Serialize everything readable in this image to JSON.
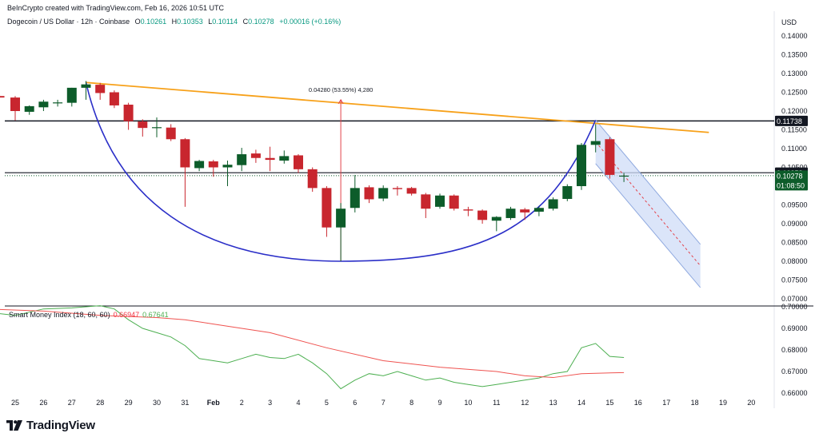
{
  "header": {
    "created": "BeInCrypto created with TradingView.com, Feb 16, 2026 10:51 UTC",
    "symbol": "Dogecoin / US Dollar · 12h · Coinbase",
    "ohlc": {
      "o_label": "O",
      "o": "0.10261",
      "h_label": "H",
      "h": "0.10353",
      "l_label": "L",
      "l": "0.10114",
      "c_label": "C",
      "c": "0.10278",
      "change": "+0.00016 (+0.16%)"
    }
  },
  "currency": "USD",
  "indicator": {
    "label": "Smart Money Index (18, 60, 60)",
    "value1": "0.66947",
    "value2": "0.67641"
  },
  "logo": "TradingView",
  "colors": {
    "up": "#0d5c2a",
    "down": "#c8262e",
    "trend": "#f7a11a",
    "cup": "#2b2fc8",
    "smi_fast": "#4caf50",
    "smi_slow": "#ef5350"
  },
  "chart_data": [
    {
      "type": "candlestick",
      "price_scale": {
        "min": 0.07,
        "max": 0.14,
        "ticks": [
          "0.14000",
          "0.13500",
          "0.13000",
          "0.12500",
          "0.12000",
          "0.11500",
          "0.11000",
          "0.10500",
          "0.10000",
          "0.09500",
          "0.09000",
          "0.08500",
          "0.08000",
          "0.07500",
          "0.07000"
        ]
      },
      "x_axis": {
        "labels": [
          "25",
          "26",
          "27",
          "28",
          "29",
          "30",
          "31",
          "Feb",
          "2",
          "3",
          "4",
          "5",
          "6",
          "7",
          "8",
          "9",
          "10",
          "11",
          "12",
          "13",
          "14",
          "15",
          "16",
          "17",
          "18",
          "19",
          "20"
        ]
      },
      "candles": [
        {
          "x": 24.45,
          "o": 0.124,
          "h": 0.1245,
          "l": 0.1232,
          "c": 0.1236
        },
        {
          "x": 25.0,
          "o": 0.1236,
          "h": 0.124,
          "l": 0.1175,
          "c": 0.12
        },
        {
          "x": 25.5,
          "o": 0.1198,
          "h": 0.1215,
          "l": 0.119,
          "c": 0.1213
        },
        {
          "x": 26.0,
          "o": 0.121,
          "h": 0.123,
          "l": 0.12,
          "c": 0.1225
        },
        {
          "x": 26.5,
          "o": 0.1223,
          "h": 0.123,
          "l": 0.1212,
          "c": 0.1223
        },
        {
          "x": 27.0,
          "o": 0.1222,
          "h": 0.1262,
          "l": 0.1212,
          "c": 0.1262
        },
        {
          "x": 27.5,
          "o": 0.1262,
          "h": 0.128,
          "l": 0.123,
          "c": 0.1271
        },
        {
          "x": 28.0,
          "o": 0.127,
          "h": 0.1275,
          "l": 0.123,
          "c": 0.1248
        },
        {
          "x": 28.5,
          "o": 0.125,
          "h": 0.1255,
          "l": 0.1208,
          "c": 0.1215
        },
        {
          "x": 29.0,
          "o": 0.1217,
          "h": 0.1222,
          "l": 0.115,
          "c": 0.1173
        },
        {
          "x": 29.5,
          "o": 0.1172,
          "h": 0.1178,
          "l": 0.1132,
          "c": 0.1155
        },
        {
          "x": 30.0,
          "o": 0.1155,
          "h": 0.1183,
          "l": 0.113,
          "c": 0.1157
        },
        {
          "x": 30.5,
          "o": 0.1156,
          "h": 0.1165,
          "l": 0.112,
          "c": 0.1125
        },
        {
          "x": 31.0,
          "o": 0.1125,
          "h": 0.1128,
          "l": 0.0945,
          "c": 0.105
        },
        {
          "x": 31.5,
          "o": 0.1048,
          "h": 0.107,
          "l": 0.104,
          "c": 0.1067
        },
        {
          "x": 32.0,
          "o": 0.1066,
          "h": 0.107,
          "l": 0.1025,
          "c": 0.105
        },
        {
          "x": 32.5,
          "o": 0.105,
          "h": 0.1068,
          "l": 0.1,
          "c": 0.1057
        },
        {
          "x": 33.0,
          "o": 0.1056,
          "h": 0.1102,
          "l": 0.104,
          "c": 0.1085
        },
        {
          "x": 33.5,
          "o": 0.1087,
          "h": 0.1097,
          "l": 0.1062,
          "c": 0.1075
        },
        {
          "x": 34.0,
          "o": 0.1075,
          "h": 0.1105,
          "l": 0.104,
          "c": 0.107
        },
        {
          "x": 34.5,
          "o": 0.1068,
          "h": 0.1095,
          "l": 0.106,
          "c": 0.108
        },
        {
          "x": 35.0,
          "o": 0.1082,
          "h": 0.1085,
          "l": 0.1035,
          "c": 0.1045
        },
        {
          "x": 35.5,
          "o": 0.1045,
          "h": 0.105,
          "l": 0.0985,
          "c": 0.0995
        },
        {
          "x": 36.0,
          "o": 0.0995,
          "h": 0.1,
          "l": 0.0865,
          "c": 0.089
        },
        {
          "x": 36.5,
          "o": 0.089,
          "h": 0.0955,
          "l": 0.08,
          "c": 0.094
        },
        {
          "x": 37.0,
          "o": 0.0942,
          "h": 0.103,
          "l": 0.093,
          "c": 0.0995
        },
        {
          "x": 37.5,
          "o": 0.0997,
          "h": 0.1002,
          "l": 0.0955,
          "c": 0.0965
        },
        {
          "x": 38.0,
          "o": 0.0967,
          "h": 0.1002,
          "l": 0.096,
          "c": 0.0995
        },
        {
          "x": 38.5,
          "o": 0.0995,
          "h": 0.1,
          "l": 0.0975,
          "c": 0.0992
        },
        {
          "x": 39.0,
          "o": 0.0995,
          "h": 0.0998,
          "l": 0.0975,
          "c": 0.098
        },
        {
          "x": 39.5,
          "o": 0.0978,
          "h": 0.0982,
          "l": 0.0915,
          "c": 0.094
        },
        {
          "x": 40.0,
          "o": 0.0945,
          "h": 0.098,
          "l": 0.094,
          "c": 0.0975
        },
        {
          "x": 40.5,
          "o": 0.0975,
          "h": 0.0978,
          "l": 0.0935,
          "c": 0.094
        },
        {
          "x": 41.0,
          "o": 0.0938,
          "h": 0.0945,
          "l": 0.092,
          "c": 0.0935
        },
        {
          "x": 41.5,
          "o": 0.0935,
          "h": 0.0938,
          "l": 0.09,
          "c": 0.091
        },
        {
          "x": 42.0,
          "o": 0.0908,
          "h": 0.092,
          "l": 0.088,
          "c": 0.0918
        },
        {
          "x": 42.5,
          "o": 0.0915,
          "h": 0.0945,
          "l": 0.091,
          "c": 0.094
        },
        {
          "x": 43.0,
          "o": 0.0938,
          "h": 0.0942,
          "l": 0.091,
          "c": 0.093
        },
        {
          "x": 43.5,
          "o": 0.0932,
          "h": 0.0946,
          "l": 0.092,
          "c": 0.0942
        },
        {
          "x": 44.0,
          "o": 0.094,
          "h": 0.097,
          "l": 0.0935,
          "c": 0.0965
        },
        {
          "x": 44.5,
          "o": 0.0966,
          "h": 0.1005,
          "l": 0.096,
          "c": 0.1
        },
        {
          "x": 45.0,
          "o": 0.1,
          "h": 0.1115,
          "l": 0.099,
          "c": 0.111
        },
        {
          "x": 45.5,
          "o": 0.111,
          "h": 0.1165,
          "l": 0.109,
          "c": 0.112
        },
        {
          "x": 46.0,
          "o": 0.1125,
          "h": 0.113,
          "l": 0.102,
          "c": 0.103
        },
        {
          "x": 46.5,
          "o": 0.1026,
          "h": 0.1035,
          "l": 0.1011,
          "c": 0.1028
        }
      ],
      "price_levels": [
        {
          "value": 0.11738,
          "label": "0.11738"
        },
        {
          "value": 0.10358,
          "label": "0.10358"
        }
      ],
      "last_price": {
        "value": 0.10278,
        "label": "0.10278",
        "countdown": "01:08:50"
      },
      "measure": {
        "label": "0.04280 (53.55%) 4,280",
        "from": 0.08,
        "to": 0.123,
        "x": 36.5
      },
      "trendline": [
        {
          "x": 27.5,
          "y": 0.1276
        },
        {
          "x": 49.5,
          "y": 0.1143
        }
      ],
      "cup": [
        {
          "x": 27.5,
          "y": 0.1276
        },
        {
          "x": 36.5,
          "y": 0.08
        },
        {
          "x": 45.5,
          "y": 0.1176
        }
      ],
      "channel": {
        "upper": [
          {
            "x": 45.5,
            "y": 0.1176
          },
          {
            "x": 49.2,
            "y": 0.0845
          }
        ],
        "lower": [
          {
            "x": 45.5,
            "y": 0.106
          },
          {
            "x": 49.2,
            "y": 0.073
          }
        ],
        "mid": [
          {
            "x": 45.5,
            "y": 0.1118
          },
          {
            "x": 49.2,
            "y": 0.0788
          }
        ]
      }
    },
    {
      "type": "line",
      "title": "Smart Money Index (18, 60, 60)",
      "ylim": [
        0.656,
        0.702
      ],
      "ticks": [
        "0.70000",
        "0.69000",
        "0.68000",
        "0.67000",
        "0.66000"
      ],
      "series": [
        {
          "color": "#4caf50",
          "points": [
            [
              24.0,
              0.6975
            ],
            [
              25.0,
              0.696
            ],
            [
              26.0,
              0.699
            ],
            [
              27.0,
              0.6995
            ],
            [
              28.0,
              0.7005
            ],
            [
              28.5,
              0.699
            ],
            [
              29.0,
              0.694
            ],
            [
              29.5,
              0.69
            ],
            [
              30.0,
              0.688
            ],
            [
              30.5,
              0.686
            ],
            [
              31.0,
              0.682
            ],
            [
              31.5,
              0.676
            ],
            [
              32.0,
              0.675
            ],
            [
              32.5,
              0.674
            ],
            [
              33.0,
              0.676
            ],
            [
              33.5,
              0.678
            ],
            [
              34.0,
              0.6765
            ],
            [
              34.5,
              0.676
            ],
            [
              35.0,
              0.678
            ],
            [
              35.5,
              0.674
            ],
            [
              36.0,
              0.669
            ],
            [
              36.5,
              0.662
            ],
            [
              37.0,
              0.666
            ],
            [
              37.5,
              0.669
            ],
            [
              38.0,
              0.668
            ],
            [
              38.5,
              0.67
            ],
            [
              39.0,
              0.668
            ],
            [
              39.5,
              0.666
            ],
            [
              40.0,
              0.667
            ],
            [
              40.5,
              0.665
            ],
            [
              41.0,
              0.664
            ],
            [
              41.5,
              0.663
            ],
            [
              42.0,
              0.664
            ],
            [
              42.5,
              0.665
            ],
            [
              43.0,
              0.666
            ],
            [
              43.5,
              0.667
            ],
            [
              44.0,
              0.669
            ],
            [
              44.5,
              0.67
            ],
            [
              45.0,
              0.681
            ],
            [
              45.5,
              0.683
            ],
            [
              46.0,
              0.677
            ],
            [
              46.5,
              0.6765
            ]
          ]
        },
        {
          "color": "#ef5350",
          "points": [
            [
              24.0,
              0.699
            ],
            [
              26.0,
              0.698
            ],
            [
              28.0,
              0.696
            ],
            [
              30.0,
              0.695
            ],
            [
              31.0,
              0.694
            ],
            [
              32.0,
              0.692
            ],
            [
              34.0,
              0.688
            ],
            [
              36.0,
              0.681
            ],
            [
              38.0,
              0.675
            ],
            [
              40.0,
              0.672
            ],
            [
              42.0,
              0.67
            ],
            [
              43.0,
              0.668
            ],
            [
              44.0,
              0.6672
            ],
            [
              45.0,
              0.669
            ],
            [
              46.5,
              0.6695
            ]
          ]
        }
      ]
    }
  ]
}
